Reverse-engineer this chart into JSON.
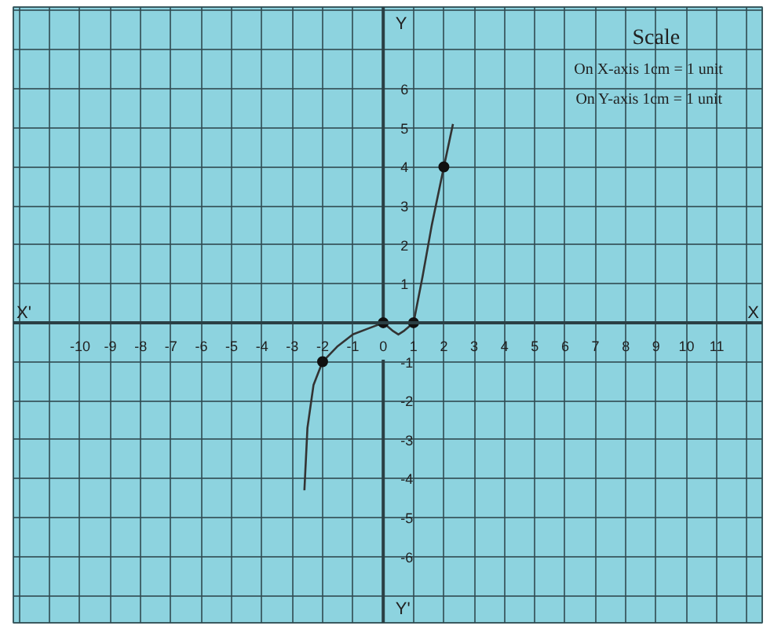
{
  "chart_data": {
    "type": "line",
    "annotations": [
      "X'",
      "X",
      "Y",
      "Y'",
      "Scale",
      "On X-axis 1cm = 1 unit",
      "On Y-axis 1cm = 1 unit"
    ],
    "xlim": [
      -12.2,
      12.5
    ],
    "ylim": [
      -7.7,
      8.1
    ],
    "xticks": [
      {
        "value": -12,
        "label": null
      },
      {
        "value": -11,
        "label": null
      },
      -10,
      -9,
      -8,
      -7,
      -6,
      -5,
      -4,
      -3,
      -2,
      -1,
      0,
      1,
      2,
      3,
      4,
      5,
      6,
      7,
      8,
      9,
      10,
      11,
      {
        "value": 12,
        "label": null
      }
    ],
    "yticks": [
      {
        "value": -7,
        "label": null
      },
      -6,
      -5,
      -4,
      -3,
      -2,
      -1,
      1,
      2,
      3,
      4,
      5,
      6,
      {
        "value": 7,
        "label": null
      },
      {
        "value": 8,
        "label": null
      }
    ],
    "grid": true,
    "series": [
      {
        "color": "#333333",
        "marker": "none",
        "x": [
          -2.6,
          -2.5,
          -2.3,
          -2,
          -1.5,
          -1,
          -0.5,
          0,
          0.3,
          0.5,
          0.7,
          1,
          1.3,
          1.6,
          2,
          2.3
        ],
        "values": [
          -4.3,
          -2.7,
          -1.6,
          -1,
          -0.6,
          -0.3,
          -0.15,
          0,
          -0.2,
          -0.3,
          -0.2,
          0,
          1.2,
          2.5,
          4,
          5.1
        ]
      },
      {
        "type": "scatter",
        "color": "#111111",
        "marker": "circle",
        "x": [
          -2,
          0,
          1,
          2
        ],
        "values": [
          -1,
          0,
          0,
          4
        ]
      }
    ]
  }
}
